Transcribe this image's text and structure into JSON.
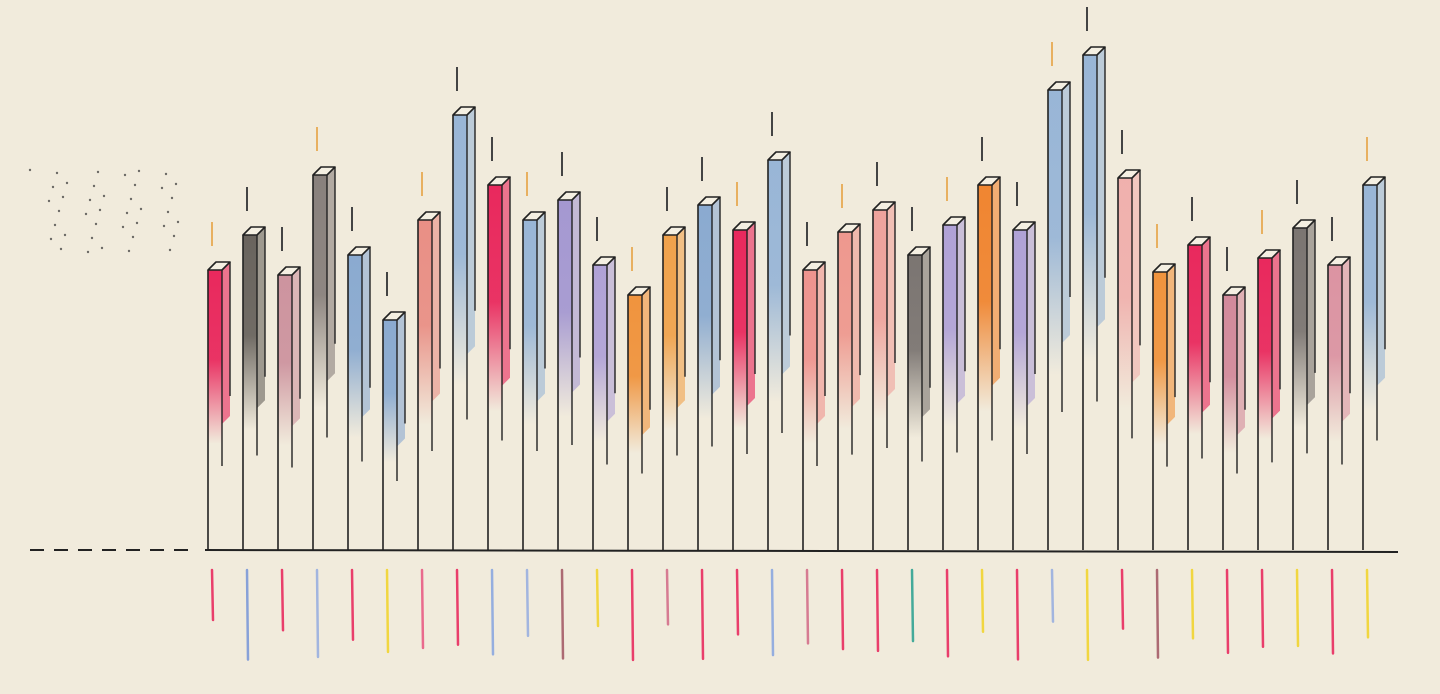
{
  "chart_data": {
    "type": "bar",
    "categories": [
      null,
      null,
      null,
      null,
      null,
      null,
      null,
      null,
      null,
      null,
      null,
      null,
      null,
      null,
      null,
      null,
      null,
      null,
      null,
      null,
      null,
      null,
      null,
      null,
      null,
      null,
      null,
      null,
      null,
      null,
      null,
      null,
      null,
      null
    ],
    "values": [
      280,
      315,
      275,
      375,
      295,
      230,
      330,
      435,
      365,
      330,
      350,
      285,
      255,
      315,
      345,
      320,
      390,
      280,
      318,
      340,
      295,
      325,
      365,
      320,
      460,
      495,
      372,
      278,
      305,
      255,
      292,
      322,
      285,
      365
    ],
    "colors": [
      "#e8134f",
      "#5a5550",
      "#c98a98",
      "#7d7572",
      "#7fa3cf",
      "#7fa3cf",
      "#e8857c",
      "#8fb0d6",
      "#e8134f",
      "#8fb0d6",
      "#9c8fd0",
      "#a99ad6",
      "#f08a2c",
      "#f09a3c",
      "#7fa3cf",
      "#e8134f",
      "#8fb0d6",
      "#ee8a86",
      "#ee8f86",
      "#ee9b96",
      "#6e6866",
      "#a99ad6",
      "#f07a1e",
      "#a99ad6",
      "#8fb0d6",
      "#8fb0d6",
      "#f0aaa8",
      "#f08a2c",
      "#e8134f",
      "#cf7f94",
      "#e8134f",
      "#6e6866",
      "#d98a9c",
      "#8fb0d6"
    ]
  }
}
